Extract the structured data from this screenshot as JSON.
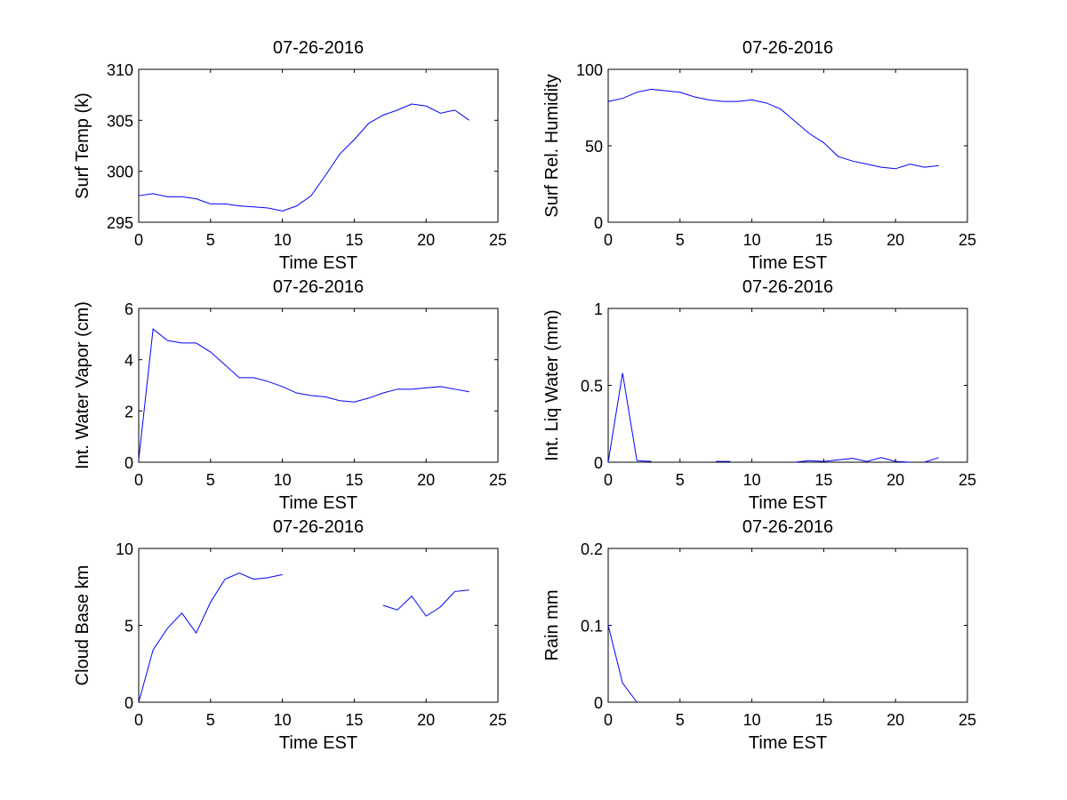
{
  "line_color": "#0000ff",
  "chart_data": [
    {
      "type": "line",
      "title": "07-26-2016",
      "xlabel": "Time EST",
      "ylabel": "Surf Temp (k)",
      "xlim": [
        0,
        25
      ],
      "ylim": [
        295,
        310
      ],
      "xticks": [
        0,
        5,
        10,
        15,
        20,
        25
      ],
      "yticks": [
        295,
        300,
        305,
        310
      ],
      "segments": [
        {
          "x": [
            0,
            1,
            2,
            3,
            4,
            5,
            6,
            7,
            8,
            9,
            10,
            11,
            12,
            13,
            14,
            15,
            16,
            17,
            18,
            19,
            20,
            21,
            22,
            23
          ],
          "y": [
            297.6,
            297.8,
            297.5,
            297.5,
            297.3,
            296.8,
            296.8,
            296.6,
            296.5,
            296.4,
            296.1,
            296.6,
            297.6,
            299.6,
            301.7,
            303.1,
            304.7,
            305.5,
            306.0,
            306.6,
            306.4,
            305.7,
            306.0,
            305.0
          ]
        }
      ]
    },
    {
      "type": "line",
      "title": "07-26-2016",
      "xlabel": "Time EST",
      "ylabel": "Surf Rel. Humidity",
      "xlim": [
        0,
        25
      ],
      "ylim": [
        0,
        100
      ],
      "xticks": [
        0,
        5,
        10,
        15,
        20,
        25
      ],
      "yticks": [
        0,
        50,
        100
      ],
      "segments": [
        {
          "x": [
            0,
            1,
            2,
            3,
            4,
            5,
            6,
            7,
            8,
            9,
            10,
            11,
            12,
            13,
            14,
            15,
            16,
            17,
            18,
            19,
            20,
            21,
            22,
            23
          ],
          "y": [
            79,
            81,
            85,
            87,
            86,
            85,
            82,
            80,
            79,
            79,
            80,
            78,
            74,
            66,
            58,
            52,
            43,
            40,
            38,
            36,
            35,
            38,
            36,
            37
          ]
        }
      ]
    },
    {
      "type": "line",
      "title": "07-26-2016",
      "xlabel": "Time EST",
      "ylabel": "Int. Water Vapor (cm)",
      "xlim": [
        0,
        25
      ],
      "ylim": [
        0,
        6
      ],
      "xticks": [
        0,
        5,
        10,
        15,
        20,
        25
      ],
      "yticks": [
        0,
        2,
        4,
        6
      ],
      "segments": [
        {
          "x": [
            0,
            1,
            2,
            3,
            4,
            5,
            6,
            7,
            8,
            9,
            10,
            11,
            12,
            13,
            14,
            15,
            16,
            17,
            18,
            19,
            20,
            21,
            22,
            23
          ],
          "y": [
            0.1,
            5.2,
            4.75,
            4.65,
            4.65,
            4.3,
            3.8,
            3.3,
            3.3,
            3.15,
            2.95,
            2.7,
            2.6,
            2.55,
            2.4,
            2.35,
            2.5,
            2.7,
            2.85,
            2.85,
            2.9,
            2.95,
            2.85,
            2.75
          ]
        }
      ]
    },
    {
      "type": "line",
      "title": "07-26-2016",
      "xlabel": "Time EST",
      "ylabel": "Int. Liq Water (mm)",
      "xlim": [
        0,
        25
      ],
      "ylim": [
        0,
        1
      ],
      "xticks": [
        0,
        5,
        10,
        15,
        20,
        25
      ],
      "yticks": [
        0,
        0.5,
        1
      ],
      "segments": [
        {
          "x": [
            0,
            1,
            2,
            3
          ],
          "y": [
            0,
            0.58,
            0.01,
            0.005
          ]
        },
        {
          "x": [
            7.5,
            8.5
          ],
          "y": [
            0.005,
            0.005
          ]
        },
        {
          "x": [
            13,
            14,
            15,
            16,
            17,
            18,
            19,
            20,
            21
          ],
          "y": [
            0,
            0.01,
            0.005,
            0.015,
            0.025,
            0.005,
            0.03,
            0.005,
            0
          ]
        },
        {
          "x": [
            22,
            23
          ],
          "y": [
            0,
            0.03
          ]
        }
      ]
    },
    {
      "type": "line",
      "title": "07-26-2016",
      "xlabel": "Time EST",
      "ylabel": "Cloud Base km",
      "xlim": [
        0,
        25
      ],
      "ylim": [
        0,
        10
      ],
      "xticks": [
        0,
        5,
        10,
        15,
        20,
        25
      ],
      "yticks": [
        0,
        5,
        10
      ],
      "segments": [
        {
          "x": [
            0,
            1,
            2,
            3,
            4,
            5,
            6,
            7,
            8,
            9,
            10
          ],
          "y": [
            0,
            3.4,
            4.8,
            5.8,
            4.5,
            6.5,
            8.0,
            8.4,
            8.0,
            8.1,
            8.3
          ]
        },
        {
          "x": [
            17,
            18,
            19,
            20,
            21,
            22,
            23
          ],
          "y": [
            6.3,
            6.0,
            6.9,
            5.6,
            6.2,
            7.2,
            7.3
          ]
        }
      ]
    },
    {
      "type": "line",
      "title": "07-26-2016",
      "xlabel": "Time EST",
      "ylabel": "Rain mm",
      "xlim": [
        0,
        25
      ],
      "ylim": [
        0,
        0.2
      ],
      "xticks": [
        0,
        5,
        10,
        15,
        20,
        25
      ],
      "yticks": [
        0,
        0.1,
        0.2
      ],
      "segments": [
        {
          "x": [
            0,
            1,
            2
          ],
          "y": [
            0.1,
            0.025,
            0
          ]
        }
      ]
    }
  ]
}
